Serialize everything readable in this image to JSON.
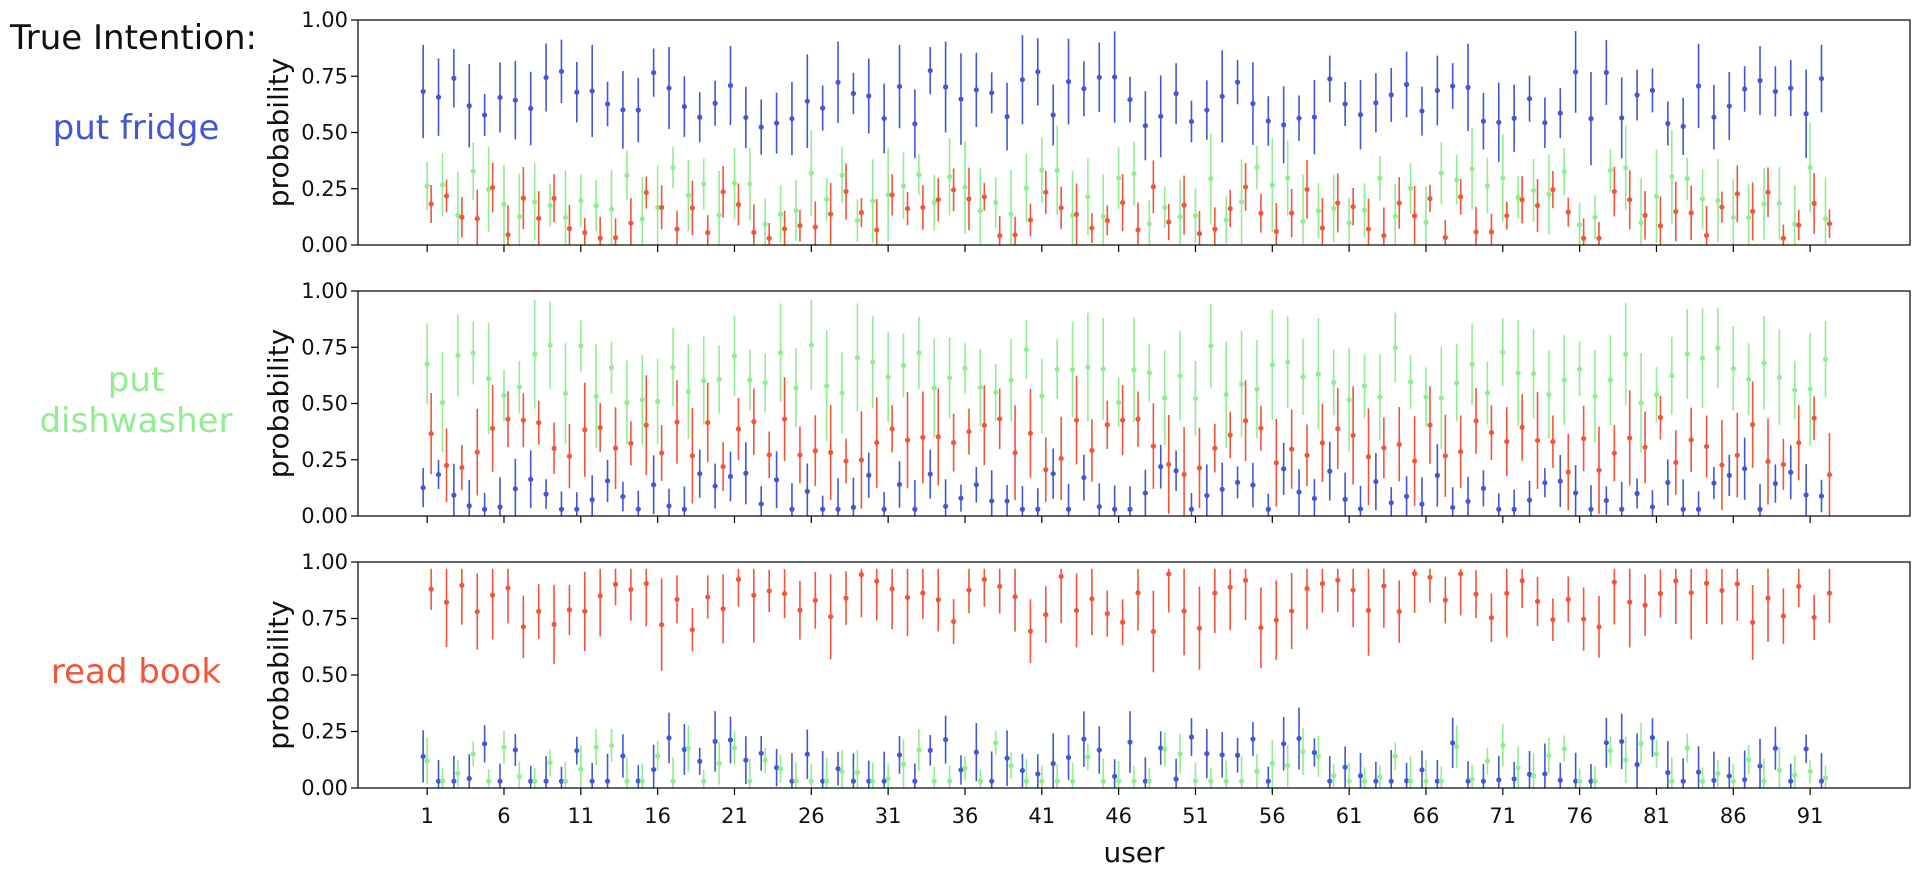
{
  "figure": {
    "title": "True Intention:",
    "xlabel": "user",
    "ylabel": "probability"
  },
  "colors": {
    "put fridge": "#4257d4",
    "put dishwasher": "#90ee90",
    "read book": "#f2553a"
  },
  "chart_data": {
    "type": "scatter",
    "x_ticks": [
      1,
      6,
      11,
      16,
      21,
      26,
      31,
      36,
      41,
      46,
      51,
      56,
      61,
      66,
      71,
      76,
      81,
      86,
      91
    ],
    "xlim": [
      -3.5,
      97.5
    ],
    "ylim": [
      0,
      1
    ],
    "y_ticks": [
      "0.00",
      "0.25",
      "0.50",
      "0.75",
      "1.00"
    ],
    "n_users": 92,
    "marker": "point with vertical error bar",
    "panels": [
      {
        "true_intention": "put fridge",
        "label_lines": [
          "put fridge"
        ],
        "label_color": "#4257d4",
        "series": [
          {
            "name": "put fridge",
            "color": "#4257d4",
            "typical_mean": 0.65,
            "typical_error": 0.15
          },
          {
            "name": "put dishwasher",
            "color": "#90ee90",
            "typical_mean": 0.22,
            "typical_error": 0.15
          },
          {
            "name": "read book",
            "color": "#f2553a",
            "typical_mean": 0.13,
            "typical_error": 0.1
          }
        ]
      },
      {
        "true_intention": "put dishwasher",
        "label_lines": [
          "put",
          "dishwasher"
        ],
        "label_color": "#90ee90",
        "series": [
          {
            "name": "put fridge",
            "color": "#4257d4",
            "typical_mean": 0.09,
            "typical_error": 0.1
          },
          {
            "name": "put dishwasher",
            "color": "#90ee90",
            "typical_mean": 0.63,
            "typical_error": 0.18
          },
          {
            "name": "read book",
            "color": "#f2553a",
            "typical_mean": 0.31,
            "typical_error": 0.16
          }
        ]
      },
      {
        "true_intention": "read book",
        "label_lines": [
          "read book"
        ],
        "label_color": "#f2553a",
        "series": [
          {
            "name": "put fridge",
            "color": "#4257d4",
            "typical_mean": 0.1,
            "typical_error": 0.1
          },
          {
            "name": "put dishwasher",
            "color": "#90ee90",
            "typical_mean": 0.07,
            "typical_error": 0.08
          },
          {
            "name": "read book",
            "color": "#f2553a",
            "typical_mean": 0.82,
            "typical_error": 0.15
          }
        ]
      }
    ]
  }
}
